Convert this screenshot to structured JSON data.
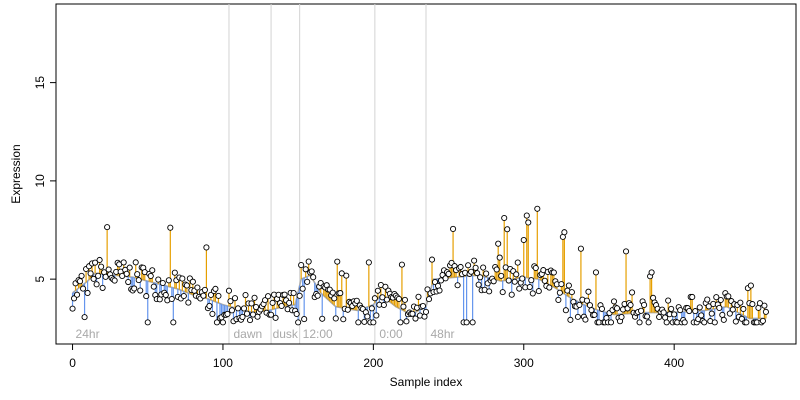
{
  "chart_data": {
    "type": "scatter",
    "title": "",
    "xlabel": "Sample index",
    "ylabel": "Expression",
    "xlim": [
      -11,
      481
    ],
    "ylim": [
      1.7,
      19.0
    ],
    "x_ticks": [
      0,
      100,
      200,
      300,
      400
    ],
    "y_ticks": [
      5,
      10,
      15
    ],
    "grid": false,
    "legend": "none",
    "colors": {
      "above_trend": "#e69f00",
      "below_trend": "#6495ed",
      "trend": "#aaaaaa",
      "point_edge": "#000000",
      "point_fill": "#ffffff",
      "separator": "#d3d3d3",
      "annotation": "#a9a9a9"
    },
    "separators": [
      104,
      132,
      151,
      201,
      235
    ],
    "annotations": [
      {
        "x": 2,
        "label": "24hr"
      },
      {
        "x": 107,
        "label": "dawn"
      },
      {
        "x": 133,
        "label": "dusk"
      },
      {
        "x": 153,
        "label": "12:00"
      },
      {
        "x": 204,
        "label": "0:00"
      },
      {
        "x": 238,
        "label": "48hr"
      }
    ],
    "trend_knots": [
      [
        0,
        4.3
      ],
      [
        10,
        4.9
      ],
      [
        15,
        5.3
      ],
      [
        40,
        5.1
      ],
      [
        60,
        4.7
      ],
      [
        70,
        4.5
      ],
      [
        80,
        4.2
      ],
      [
        90,
        4.0
      ],
      [
        100,
        3.7
      ],
      [
        110,
        3.5
      ],
      [
        120,
        3.3
      ],
      [
        130,
        3.4
      ],
      [
        140,
        3.6
      ],
      [
        148,
        3.7
      ],
      [
        152,
        5.0
      ],
      [
        158,
        5.2
      ],
      [
        165,
        4.3
      ],
      [
        175,
        3.6
      ],
      [
        190,
        3.4
      ],
      [
        200,
        3.7
      ],
      [
        205,
        4.2
      ],
      [
        215,
        3.6
      ],
      [
        225,
        3.2
      ],
      [
        235,
        3.6
      ],
      [
        240,
        5.0
      ],
      [
        255,
        5.1
      ],
      [
        270,
        5.2
      ],
      [
        285,
        4.9
      ],
      [
        300,
        5.1
      ],
      [
        310,
        5.0
      ],
      [
        320,
        4.6
      ],
      [
        330,
        4.1
      ],
      [
        340,
        3.7
      ],
      [
        350,
        3.4
      ],
      [
        360,
        3.2
      ],
      [
        380,
        3.3
      ],
      [
        400,
        3.3
      ],
      [
        420,
        3.4
      ],
      [
        435,
        3.6
      ],
      [
        445,
        3.2
      ],
      [
        450,
        3.0
      ],
      [
        460,
        3.0
      ]
    ],
    "n_points": 462,
    "seed": 7
  }
}
